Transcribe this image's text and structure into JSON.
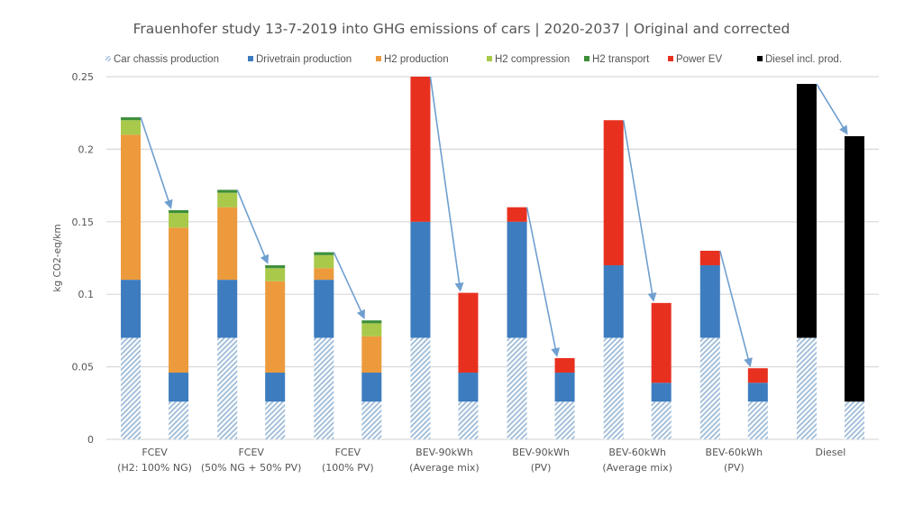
{
  "chart_data": {
    "type": "bar",
    "stacked": true,
    "title": "Frauenhofer study 13-7-2019 into GHG emissions of cars | 2020-2037 | Original and corrected",
    "xlabel": "",
    "ylabel": "kg CO2-eq/km",
    "ylim": [
      0,
      0.25
    ],
    "yticks": [
      0,
      0.05,
      0.1,
      0.15,
      0.2,
      0.25
    ],
    "ytick_labels": [
      "0",
      "0.05",
      "0.1",
      "0.15",
      "0.2",
      "0.25"
    ],
    "grid": true,
    "legend_position": "top",
    "series_order": [
      "chassis",
      "drivetrain",
      "h2prod",
      "h2comp",
      "h2trans",
      "powerev",
      "diesel"
    ],
    "legend": [
      {
        "key": "chassis",
        "label": "Car chassis production",
        "color": "#9dbbd8",
        "hatched": true
      },
      {
        "key": "drivetrain",
        "label": "Drivetrain production",
        "color": "#3d7cbf"
      },
      {
        "key": "h2prod",
        "label": "H2 production",
        "color": "#ec9a3c"
      },
      {
        "key": "h2comp",
        "label": "H2 compression",
        "color": "#a9c94a"
      },
      {
        "key": "h2trans",
        "label": "H2 transport",
        "color": "#3e8f3a"
      },
      {
        "key": "powerev",
        "label": "Power EV",
        "color": "#e8301f"
      },
      {
        "key": "diesel",
        "label": "Diesel incl. prod.",
        "color": "#000000"
      }
    ],
    "categories": [
      {
        "line1": "FCEV",
        "line2": "(H2: 100% NG)"
      },
      {
        "line1": "FCEV",
        "line2": "(50% NG + 50% PV)"
      },
      {
        "line1": "FCEV",
        "line2": "(100% PV)"
      },
      {
        "line1": "BEV-90kWh",
        "line2": "(Average mix)"
      },
      {
        "line1": "BEV-90kWh",
        "line2": "(PV)"
      },
      {
        "line1": "BEV-60kWh",
        "line2": "(Average mix)"
      },
      {
        "line1": "BEV-60kWh",
        "line2": "(PV)"
      },
      {
        "line1": "Diesel",
        "line2": ""
      }
    ],
    "bar_pairs": [
      {
        "original": {
          "chassis": 0.07,
          "drivetrain": 0.04,
          "h2prod": 0.1,
          "h2comp": 0.01,
          "h2trans": 0.002
        },
        "corrected": {
          "chassis": 0.026,
          "drivetrain": 0.02,
          "h2prod": 0.1,
          "h2comp": 0.01,
          "h2trans": 0.002
        }
      },
      {
        "original": {
          "chassis": 0.07,
          "drivetrain": 0.04,
          "h2prod": 0.05,
          "h2comp": 0.01,
          "h2trans": 0.002
        },
        "corrected": {
          "chassis": 0.026,
          "drivetrain": 0.02,
          "h2prod": 0.063,
          "h2comp": 0.009,
          "h2trans": 0.002
        }
      },
      {
        "original": {
          "chassis": 0.07,
          "drivetrain": 0.04,
          "h2prod": 0.008,
          "h2comp": 0.009,
          "h2trans": 0.002
        },
        "corrected": {
          "chassis": 0.026,
          "drivetrain": 0.02,
          "h2prod": 0.025,
          "h2comp": 0.009,
          "h2trans": 0.002
        }
      },
      {
        "original": {
          "chassis": 0.07,
          "drivetrain": 0.08,
          "powerev": 0.1
        },
        "corrected": {
          "chassis": 0.026,
          "drivetrain": 0.02,
          "powerev": 0.055
        }
      },
      {
        "original": {
          "chassis": 0.07,
          "drivetrain": 0.08,
          "powerev": 0.01
        },
        "corrected": {
          "chassis": 0.026,
          "drivetrain": 0.02,
          "powerev": 0.01
        }
      },
      {
        "original": {
          "chassis": 0.07,
          "drivetrain": 0.05,
          "powerev": 0.1
        },
        "corrected": {
          "chassis": 0.026,
          "drivetrain": 0.013,
          "powerev": 0.055
        }
      },
      {
        "original": {
          "chassis": 0.07,
          "drivetrain": 0.05,
          "powerev": 0.01
        },
        "corrected": {
          "chassis": 0.026,
          "drivetrain": 0.013,
          "powerev": 0.01
        }
      },
      {
        "original": {
          "chassis": 0.07,
          "diesel": 0.175
        },
        "corrected": {
          "chassis": 0.026,
          "diesel": 0.183
        }
      }
    ],
    "annotations": "Arrows from each original bar top to the corresponding corrected bar top",
    "arrow_color": "#6f9fd0",
    "grid_color": "#d9d9d9",
    "text_color": "#595959"
  }
}
